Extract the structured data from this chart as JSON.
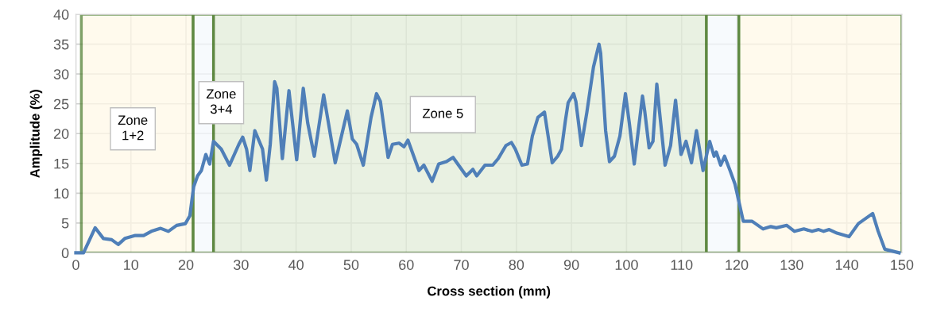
{
  "chart_data": {
    "type": "line",
    "xlabel": "Cross section (mm)",
    "ylabel": "Amplitude (%)",
    "xlim": [
      0,
      150
    ],
    "xticks": [
      0,
      10,
      20,
      30,
      40,
      50,
      60,
      70,
      80,
      90,
      100,
      110,
      120,
      130,
      140,
      150
    ],
    "ylim": [
      0,
      40
    ],
    "yticks": [
      0,
      5,
      10,
      15,
      20,
      25,
      30,
      35,
      40
    ],
    "grid": true,
    "marker": "none",
    "line_style": "solid",
    "bands": [
      {
        "axis": "x",
        "from": 1.0,
        "to": 21.3,
        "label": "Zone 1+2",
        "color": "#fff8e7"
      },
      {
        "axis": "x",
        "from": 21.3,
        "to": 25.0,
        "label": "Zone 3+4",
        "color": "#f4f8fd"
      },
      {
        "axis": "x",
        "from": 25.0,
        "to": 114.5,
        "label": "Zone 5",
        "color": "#e2ecd8"
      },
      {
        "axis": "x",
        "from": 114.5,
        "to": 120.4,
        "color": "#f4f8fd"
      },
      {
        "axis": "x",
        "from": 120.4,
        "to": 150,
        "color": "#fff8e7"
      }
    ],
    "series": [
      {
        "color": "#4f7fb8",
        "x": [
          0,
          1.4,
          3.5,
          5.0,
          6.5,
          7.7,
          8.9,
          10.8,
          12.3,
          13.7,
          15.4,
          16.8,
          18.3,
          19.9,
          20.7,
          21.4,
          22.1,
          22.8,
          23.6,
          24.3,
          25.0,
          26.4,
          27.9,
          29.6,
          30.3,
          31.0,
          31.6,
          32.5,
          33.9,
          34.6,
          35.3,
          36.1,
          36.5,
          37.5,
          38.7,
          40.1,
          41.3,
          42.1,
          43.3,
          45.0,
          45.7,
          47.1,
          49.3,
          50.2,
          51.0,
          52.2,
          53.6,
          54.6,
          55.3,
          56.7,
          57.5,
          58.7,
          59.6,
          60.3,
          62.3,
          63.2,
          64.7,
          65.9,
          67.3,
          68.5,
          69.5,
          70.9,
          72.1,
          72.8,
          74.3,
          75.7,
          76.7,
          78.1,
          79.1,
          79.8,
          81.0,
          82.0,
          82.9,
          83.9,
          85.1,
          86.5,
          87.5,
          88.2,
          88.9,
          89.4,
          90.4,
          90.8,
          91.8,
          92.8,
          94.0,
          95.0,
          95.3,
          96.2,
          96.9,
          97.8,
          98.8,
          99.8,
          100.5,
          101.4,
          102.9,
          103.3,
          104.1,
          104.8,
          105.5,
          106.0,
          107.0,
          108.0,
          108.9,
          109.9,
          110.8,
          111.8,
          112.7,
          113.9,
          115.1,
          115.9,
          116.3,
          117.1,
          117.8,
          118.8,
          119.7,
          121.2,
          122.8,
          124.8,
          126.2,
          127.2,
          129.1,
          130.5,
          132.2,
          133.7,
          134.9,
          135.8,
          136.8,
          138.2,
          140.4,
          142.1,
          144.7,
          145.7,
          146.9,
          149.5
        ],
        "values": [
          0,
          0,
          4.2,
          2.4,
          2.2,
          1.4,
          2.4,
          2.9,
          2.9,
          3.6,
          4.1,
          3.6,
          4.6,
          4.9,
          6.2,
          11.1,
          12.9,
          13.8,
          16.5,
          14.9,
          18.7,
          17.4,
          14.7,
          18.2,
          19.4,
          17.4,
          13.8,
          20.5,
          17.4,
          12.2,
          18.2,
          28.7,
          27.6,
          15.8,
          27.2,
          15.6,
          27.6,
          21.8,
          16.2,
          26.5,
          22.7,
          15.1,
          23.8,
          19.1,
          18.2,
          14.7,
          22.7,
          26.7,
          25.4,
          16.0,
          18.2,
          18.4,
          17.8,
          18.9,
          13.8,
          14.7,
          12.0,
          14.9,
          15.3,
          16.0,
          14.7,
          12.9,
          14.0,
          12.9,
          14.7,
          14.7,
          15.8,
          18.0,
          18.5,
          17.4,
          14.7,
          14.9,
          19.6,
          22.7,
          23.6,
          15.1,
          16.2,
          17.4,
          22.2,
          25.2,
          26.7,
          25.4,
          18.0,
          23.6,
          31.2,
          35.0,
          33.5,
          20.5,
          15.3,
          16.2,
          19.6,
          26.7,
          21.8,
          14.9,
          26.3,
          23.8,
          17.6,
          18.7,
          28.3,
          23.6,
          14.7,
          18.0,
          25.6,
          16.5,
          18.7,
          15.1,
          20.5,
          13.8,
          18.7,
          16.2,
          16.9,
          14.7,
          16.2,
          13.8,
          11.5,
          5.3,
          5.3,
          4.0,
          4.4,
          4.2,
          4.6,
          3.6,
          4.0,
          3.6,
          3.9,
          3.6,
          3.9,
          3.3,
          2.7,
          4.9,
          6.6,
          3.6,
          0.6,
          0
        ]
      }
    ]
  }
}
